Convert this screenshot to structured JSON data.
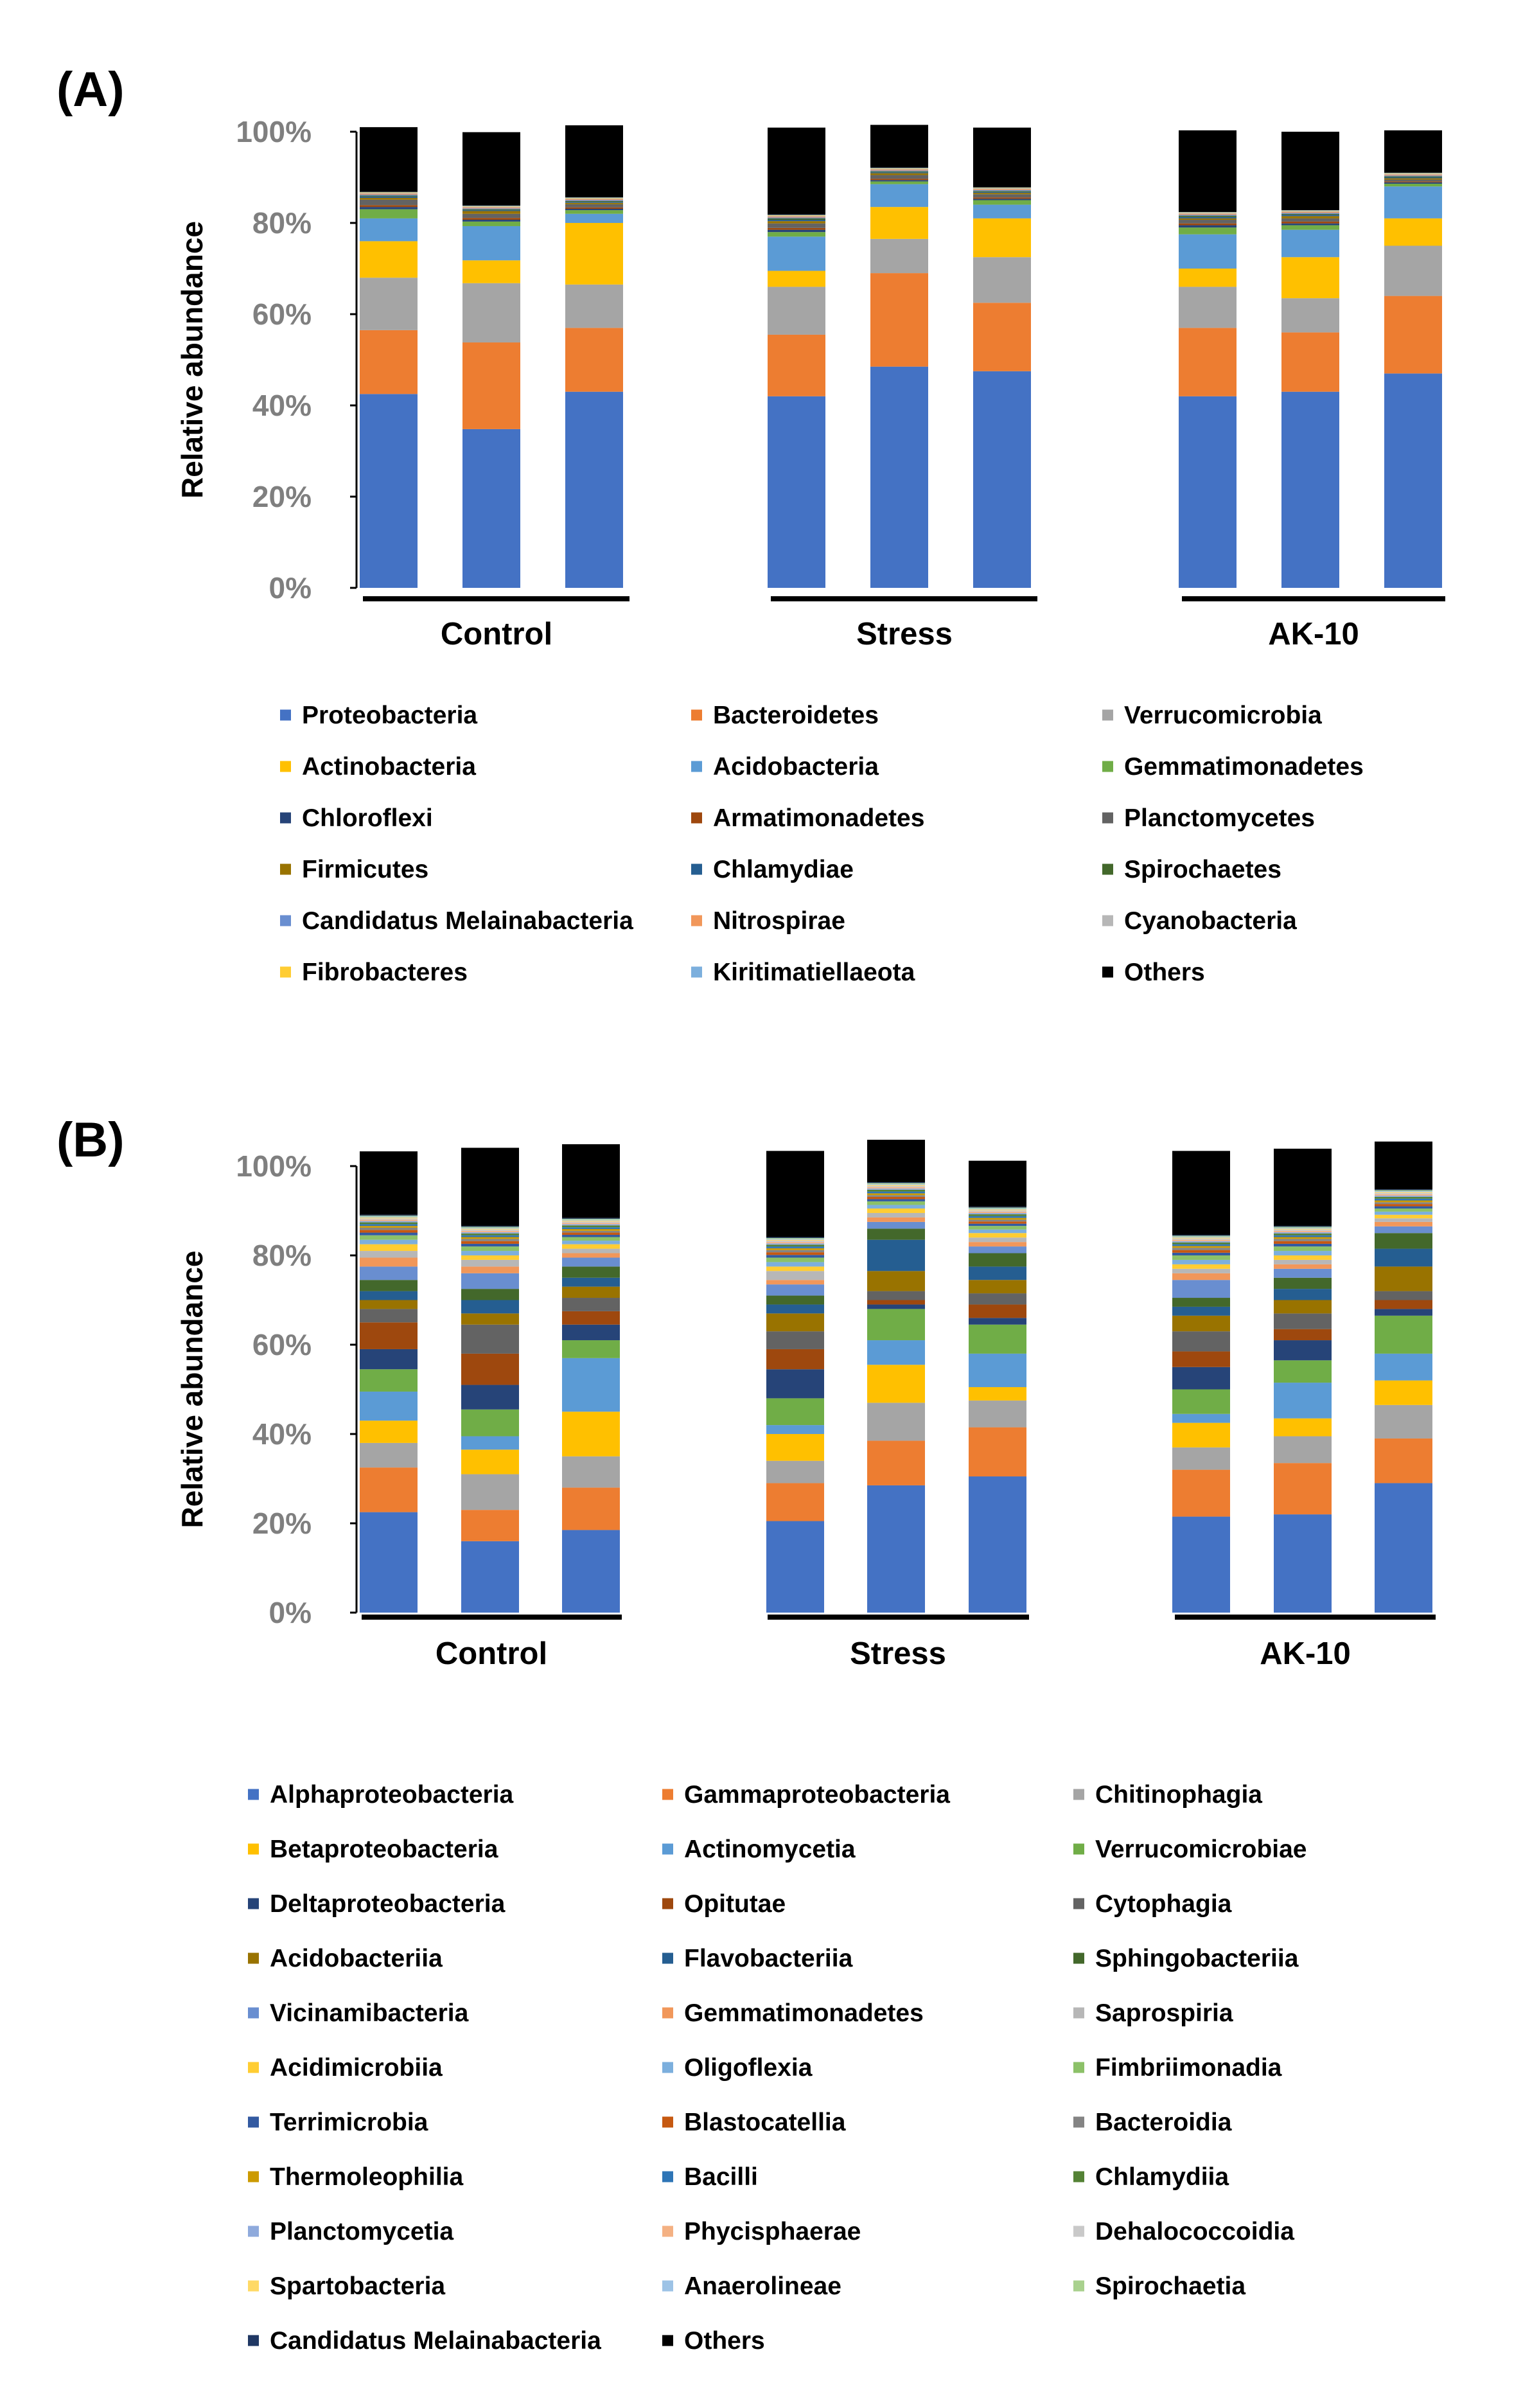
{
  "chart_data": [
    {
      "type": "stacked_bar",
      "panel_label": "(A)",
      "ylabel": "Relative abundance",
      "ylim": [
        0,
        100
      ],
      "yticks": [
        "0%",
        "20%",
        "40%",
        "60%",
        "80%",
        "100%"
      ],
      "groups": [
        "Control",
        "Stress",
        "AK-10"
      ],
      "bars_per_group": 3,
      "series": [
        {
          "name": "Proteobacteria",
          "color": "#4472c4",
          "values": [
            42.5,
            34.8,
            43,
            42,
            48.5,
            47.5,
            42,
            43,
            47
          ]
        },
        {
          "name": "Bacteroidetes",
          "color": "#ed7d31",
          "values": [
            14,
            19,
            14,
            13.5,
            20.5,
            15,
            15,
            13,
            17
          ]
        },
        {
          "name": "Verrucomicrobia",
          "color": "#a5a5a5",
          "values": [
            11.5,
            13,
            9.5,
            10.5,
            7.5,
            10,
            9,
            7.5,
            11
          ]
        },
        {
          "name": "Actinobacteria",
          "color": "#ffc000",
          "values": [
            8,
            5,
            13.5,
            3.5,
            7,
            8.5,
            4,
            9,
            6
          ]
        },
        {
          "name": "Acidobacteria",
          "color": "#5b9bd5",
          "values": [
            5,
            7.5,
            2,
            7.5,
            5,
            3,
            7.5,
            6,
            7
          ]
        },
        {
          "name": "Gemmatimonadetes",
          "color": "#70ad47",
          "values": [
            2,
            1,
            0.8,
            1,
            0.6,
            1,
            1.5,
            1,
            0.6
          ]
        },
        {
          "name": "Chloroflexi",
          "color": "#264478",
          "values": [
            0.5,
            0.4,
            0.3,
            0.5,
            0.3,
            0.3,
            0.5,
            0.4,
            0.3
          ]
        },
        {
          "name": "Armatimonadetes",
          "color": "#9e480e",
          "values": [
            0.4,
            0.4,
            0.3,
            0.4,
            0.3,
            0.3,
            0.4,
            0.4,
            0.2
          ]
        },
        {
          "name": "Planctomycetes",
          "color": "#636363",
          "values": [
            1.2,
            0.9,
            0.7,
            1,
            0.8,
            0.7,
            0.8,
            0.7,
            0.4
          ]
        },
        {
          "name": "Firmicutes",
          "color": "#997300",
          "values": [
            0.4,
            0.6,
            0.3,
            0.5,
            0.4,
            0.3,
            0.3,
            0.5,
            0.3
          ]
        },
        {
          "name": "Chlamydiae",
          "color": "#255e91",
          "values": [
            0.3,
            0.2,
            0.2,
            0.3,
            0.2,
            0.2,
            0.3,
            0.3,
            0.2
          ]
        },
        {
          "name": "Spirochaetes",
          "color": "#43682b",
          "values": [
            0.2,
            0.2,
            0.2,
            0.3,
            0.2,
            0.2,
            0.3,
            0.2,
            0.2
          ]
        },
        {
          "name": "Candidatus Melainabacteria",
          "color": "#698ed0",
          "values": [
            0.2,
            0.2,
            0.2,
            0.2,
            0.2,
            0.2,
            0.2,
            0.2,
            0.2
          ]
        },
        {
          "name": "Nitrospirae",
          "color": "#f1975a",
          "values": [
            0.2,
            0.2,
            0.2,
            0.2,
            0.2,
            0.2,
            0.2,
            0.2,
            0.2
          ]
        },
        {
          "name": "Cyanobacteria",
          "color": "#b7b7b7",
          "values": [
            0.2,
            0.2,
            0.2,
            0.2,
            0.2,
            0.2,
            0.2,
            0.2,
            0.2
          ]
        },
        {
          "name": "Fibrobacteres",
          "color": "#ffcd33",
          "values": [
            0.1,
            0.1,
            0.1,
            0.1,
            0.1,
            0.1,
            0.1,
            0.1,
            0.1
          ]
        },
        {
          "name": "Kiritimatiellaeota",
          "color": "#7cafdd",
          "values": [
            0.1,
            0.1,
            0.1,
            0.1,
            0.1,
            0.1,
            0.1,
            0.1,
            0.1
          ]
        },
        {
          "name": "Others",
          "color": "#000000",
          "values": [
            14.2,
            16.1,
            15.8,
            19.1,
            9.4,
            13.1,
            17.9,
            17.2,
            9.3
          ]
        }
      ]
    },
    {
      "type": "stacked_bar",
      "panel_label": "(B)",
      "ylabel": "Relative abundance",
      "ylim": [
        0,
        100
      ],
      "yticks": [
        "0%",
        "20%",
        "40%",
        "60%",
        "80%",
        "100%"
      ],
      "groups": [
        "Control",
        "Stress",
        "AK-10"
      ],
      "bars_per_group": 3,
      "series": [
        {
          "name": "Alphaproteobacteria",
          "color": "#4472c4",
          "values": [
            22.5,
            16,
            18.5,
            20.5,
            28.5,
            30.5,
            21.5,
            22,
            29
          ]
        },
        {
          "name": "Gammaproteobacteria",
          "color": "#ed7d31",
          "values": [
            10,
            7,
            9.5,
            8.5,
            10,
            11,
            10.5,
            11.5,
            10
          ]
        },
        {
          "name": "Chitinophagia",
          "color": "#a5a5a5",
          "values": [
            5.5,
            8,
            7,
            5,
            8.5,
            6,
            5,
            6,
            7.5
          ]
        },
        {
          "name": "Betaproteobacteria",
          "color": "#ffc000",
          "values": [
            5,
            5.5,
            10,
            6,
            8.5,
            3,
            5.5,
            4,
            5.5
          ]
        },
        {
          "name": "Actinomycetia",
          "color": "#5b9bd5",
          "values": [
            6.5,
            3,
            12,
            2,
            5.5,
            7.5,
            2,
            8,
            6
          ]
        },
        {
          "name": "Verrucomicrobiae",
          "color": "#70ad47",
          "values": [
            5,
            6,
            4,
            6,
            7,
            6.5,
            5.5,
            5,
            8.5
          ]
        },
        {
          "name": "Deltaproteobacteria",
          "color": "#264478",
          "values": [
            4.5,
            5.5,
            3.5,
            6.5,
            1,
            1.5,
            5,
            4.5,
            1.5
          ]
        },
        {
          "name": "Opitutae",
          "color": "#9e480e",
          "values": [
            6,
            7,
            3,
            4.5,
            1,
            3,
            3.5,
            2.5,
            2
          ]
        },
        {
          "name": "Cytophagia",
          "color": "#636363",
          "values": [
            3,
            6.5,
            3,
            4,
            2,
            2.5,
            4.5,
            3.5,
            2
          ]
        },
        {
          "name": "Acidobacteriia",
          "color": "#997300",
          "values": [
            2,
            2.5,
            2.5,
            4,
            4.5,
            3,
            3.5,
            3,
            5.5
          ]
        },
        {
          "name": "Flavobacteriia",
          "color": "#255e91",
          "values": [
            2,
            3,
            2,
            2,
            7,
            3,
            2,
            2.5,
            4
          ]
        },
        {
          "name": "Sphingobacteriia",
          "color": "#43682b",
          "values": [
            2.5,
            2.5,
            2.5,
            2,
            2.5,
            3,
            2,
            2.5,
            3.5
          ]
        },
        {
          "name": "Vicinamibacteria",
          "color": "#698ed0",
          "values": [
            3,
            3.5,
            2,
            2.5,
            1.5,
            1.5,
            4,
            2,
            1.5
          ]
        },
        {
          "name": "Gemmatimonadetes",
          "color": "#f1975a",
          "values": [
            2,
            1.5,
            1,
            1,
            1,
            1,
            1.5,
            1,
            1
          ]
        },
        {
          "name": "Saprospiria",
          "color": "#b7b7b7",
          "values": [
            1.5,
            1.5,
            1,
            2,
            1,
            1,
            1,
            1,
            0.8
          ]
        },
        {
          "name": "Acidimicrobiia",
          "color": "#ffcd33",
          "values": [
            1.5,
            1,
            1,
            1,
            1,
            1,
            1,
            1,
            0.8
          ]
        },
        {
          "name": "Oligoflexia",
          "color": "#7cafdd",
          "values": [
            1,
            1,
            0.8,
            1,
            0.8,
            0.8,
            1,
            1,
            0.7
          ]
        },
        {
          "name": "Fimbriimonadia",
          "color": "#8cc168",
          "values": [
            1,
            1,
            0.8,
            1,
            0.8,
            0.8,
            1,
            1,
            0.7
          ]
        },
        {
          "name": "Terrimicrobia",
          "color": "#335aa1",
          "values": [
            0.6,
            0.6,
            0.5,
            0.6,
            0.5,
            0.5,
            0.6,
            0.6,
            0.5
          ]
        },
        {
          "name": "Blastocatellia",
          "color": "#c65911",
          "values": [
            0.6,
            0.6,
            0.5,
            0.6,
            0.5,
            0.5,
            0.6,
            0.6,
            0.5
          ]
        },
        {
          "name": "Bacteroidia",
          "color": "#848484",
          "values": [
            0.5,
            0.5,
            0.4,
            0.5,
            0.4,
            0.4,
            0.5,
            0.5,
            0.4
          ]
        },
        {
          "name": "Thermoleophilia",
          "color": "#cc9a00",
          "values": [
            0.4,
            0.4,
            0.4,
            0.4,
            0.4,
            0.4,
            0.4,
            0.4,
            0.4
          ]
        },
        {
          "name": "Bacilli",
          "color": "#2e75b6",
          "values": [
            0.4,
            0.4,
            0.4,
            0.4,
            0.4,
            0.4,
            0.4,
            0.4,
            0.4
          ]
        },
        {
          "name": "Chlamydiia",
          "color": "#548235",
          "values": [
            0.4,
            0.4,
            0.4,
            0.4,
            0.4,
            0.4,
            0.4,
            0.4,
            0.4
          ]
        },
        {
          "name": "Planctomycetia",
          "color": "#8faadc",
          "values": [
            0.3,
            0.3,
            0.3,
            0.3,
            0.3,
            0.3,
            0.3,
            0.3,
            0.3
          ]
        },
        {
          "name": "Phycisphaerae",
          "color": "#f4b183",
          "values": [
            0.3,
            0.3,
            0.3,
            0.3,
            0.3,
            0.3,
            0.3,
            0.3,
            0.3
          ]
        },
        {
          "name": "Dehalococcoidia",
          "color": "#c9c9c9",
          "values": [
            0.3,
            0.3,
            0.3,
            0.3,
            0.3,
            0.3,
            0.3,
            0.3,
            0.3
          ]
        },
        {
          "name": "Spartobacteria",
          "color": "#ffd966",
          "values": [
            0.2,
            0.2,
            0.2,
            0.2,
            0.2,
            0.2,
            0.2,
            0.2,
            0.2
          ]
        },
        {
          "name": "Anaerolineae",
          "color": "#9dc3e6",
          "values": [
            0.2,
            0.2,
            0.2,
            0.2,
            0.2,
            0.2,
            0.2,
            0.2,
            0.2
          ]
        },
        {
          "name": "Spirochaetia",
          "color": "#a9d18e",
          "values": [
            0.2,
            0.2,
            0.2,
            0.2,
            0.2,
            0.2,
            0.2,
            0.2,
            0.2
          ]
        },
        {
          "name": "Candidatus Melainabacteria",
          "color": "#203864",
          "values": [
            0.2,
            0.2,
            0.2,
            0.2,
            0.2,
            0.2,
            0.2,
            0.2,
            0.2
          ]
        },
        {
          "name": "Others",
          "color": "#000000",
          "values": [
            14.2,
            17.5,
            16.5,
            19.3,
            9.5,
            10.3,
            18.8,
            17.3,
            10.7
          ]
        }
      ]
    }
  ]
}
